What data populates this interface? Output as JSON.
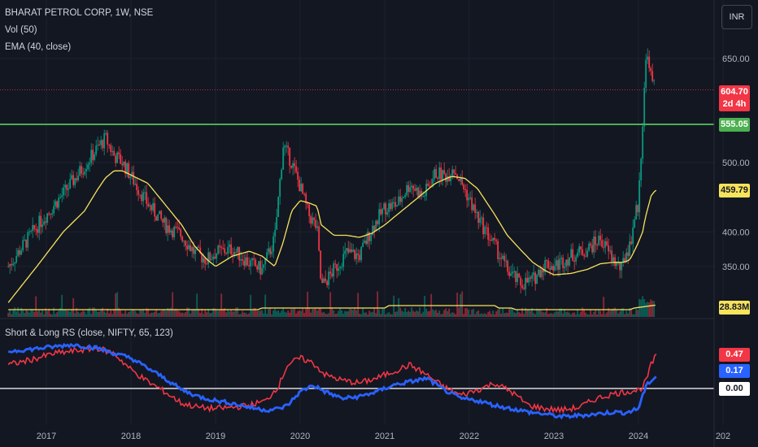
{
  "chart_data": {
    "type": "candlestick",
    "symbol": "BHARAT PETROL CORP, 1W, NSE",
    "currency": "INR",
    "indicators": [
      "Vol (50)",
      "EMA (40, close)"
    ],
    "x_ticks": [
      "2017",
      "2018",
      "2019",
      "2020",
      "2021",
      "2022",
      "2023",
      "2024",
      "202"
    ],
    "y_ticks": [
      {
        "label": "650.00",
        "value": 650
      },
      {
        "label": "500.00",
        "value": 500
      },
      {
        "label": "400.00",
        "value": 400
      },
      {
        "label": "350.00",
        "value": 350
      }
    ],
    "ylim": [
      285,
      690
    ],
    "price_series": {
      "t": [
        2016.55,
        2016.9,
        2017.2,
        2017.45,
        2017.6,
        2017.7,
        2017.8,
        2017.9,
        2018.0,
        2018.2,
        2018.4,
        2018.6,
        2018.75,
        2018.9,
        2019.0,
        2019.2,
        2019.4,
        2019.55,
        2019.7,
        2019.8,
        2019.9,
        2020.0,
        2020.1,
        2020.2,
        2020.25,
        2020.4,
        2020.55,
        2020.7,
        2020.85,
        2021.0,
        2021.15,
        2021.3,
        2021.45,
        2021.6,
        2021.75,
        2021.8,
        2021.95,
        2022.1,
        2022.3,
        2022.45,
        2022.6,
        2022.75,
        2022.9,
        2023.0,
        2023.2,
        2023.4,
        2023.55,
        2023.7,
        2023.8,
        2023.85,
        2023.9,
        2023.95,
        2024.0,
        2024.05,
        2024.08,
        2024.12,
        2024.15,
        2024.2
      ],
      "close": [
        350,
        410,
        455,
        495,
        520,
        535,
        510,
        500,
        480,
        440,
        410,
        395,
        370,
        360,
        370,
        375,
        355,
        345,
        390,
        525,
        500,
        465,
        425,
        405,
        320,
        345,
        370,
        365,
        405,
        435,
        440,
        470,
        450,
        485,
        480,
        495,
        460,
        420,
        380,
        345,
        325,
        330,
        355,
        350,
        365,
        375,
        390,
        360,
        345,
        370,
        380,
        420,
        440,
        560,
        640,
        655,
        620,
        605
      ],
      "ema": [
        298,
        352,
        400,
        430,
        460,
        478,
        488,
        488,
        482,
        470,
        440,
        410,
        380,
        360,
        350,
        365,
        372,
        365,
        350,
        385,
        430,
        445,
        442,
        437,
        410,
        395,
        395,
        392,
        398,
        410,
        425,
        440,
        455,
        470,
        478,
        480,
        477,
        462,
        425,
        395,
        375,
        356,
        344,
        338,
        340,
        346,
        354,
        356,
        356,
        357,
        360,
        372,
        385,
        400,
        420,
        438,
        452,
        459.79
      ]
    },
    "ema_label": "EMA (40, close)",
    "ema_value": "459.79",
    "last_price": "604.70",
    "countdown": "2d 4h",
    "resistance": "555.05",
    "volume_label": "Vol (50)",
    "volume_value": "28.83M",
    "rs_indicator": {
      "label": "Short & Long RS (close, NIFTY, 65, 123)",
      "short_value": "0.47",
      "long_value": "0.17",
      "zero_value": "0.00",
      "ylim": [
        -0.35,
        0.72
      ],
      "t": [
        2016.55,
        2016.8,
        2017.1,
        2017.3,
        2017.6,
        2017.8,
        2018.0,
        2018.2,
        2018.4,
        2018.6,
        2018.8,
        2019.0,
        2019.2,
        2019.4,
        2019.6,
        2019.75,
        2019.85,
        2020.0,
        2020.15,
        2020.3,
        2020.5,
        2020.7,
        2020.9,
        2021.1,
        2021.3,
        2021.5,
        2021.7,
        2021.9,
        2022.1,
        2022.3,
        2022.5,
        2022.7,
        2022.9,
        2023.1,
        2023.3,
        2023.5,
        2023.7,
        2023.85,
        2024.0,
        2024.05,
        2024.1,
        2024.15,
        2024.2
      ],
      "short": [
        0.35,
        0.42,
        0.52,
        0.55,
        0.6,
        0.52,
        0.28,
        0.1,
        -0.05,
        -0.22,
        -0.28,
        -0.3,
        -0.28,
        -0.25,
        -0.18,
        0.05,
        0.35,
        0.45,
        0.38,
        0.2,
        0.12,
        0.08,
        0.15,
        0.25,
        0.35,
        0.2,
        0.02,
        -0.1,
        -0.02,
        0.08,
        -0.05,
        -0.25,
        -0.3,
        -0.32,
        -0.28,
        -0.15,
        -0.08,
        -0.05,
        -0.02,
        0.02,
        0.15,
        0.35,
        0.47
      ],
      "long": [
        0.55,
        0.58,
        0.62,
        0.65,
        0.6,
        0.52,
        0.45,
        0.3,
        0.15,
        -0.02,
        -0.12,
        -0.18,
        -0.22,
        -0.28,
        -0.32,
        -0.3,
        -0.25,
        -0.05,
        0.05,
        -0.05,
        -0.15,
        -0.12,
        -0.05,
        0.05,
        0.1,
        0.15,
        -0.02,
        -0.15,
        -0.18,
        -0.25,
        -0.3,
        -0.35,
        -0.38,
        -0.42,
        -0.4,
        -0.38,
        -0.35,
        -0.36,
        -0.3,
        -0.1,
        0.05,
        0.12,
        0.17
      ]
    },
    "colors": {
      "background": "#131722",
      "up": "#089981",
      "down": "#f23645",
      "ema": "#f7e35c",
      "volume_avg": "#f7e35c",
      "resistance": "#4caf50",
      "short_rs": "#f23645",
      "long_rs": "#2962ff",
      "zero_line": "#ffffff"
    }
  }
}
